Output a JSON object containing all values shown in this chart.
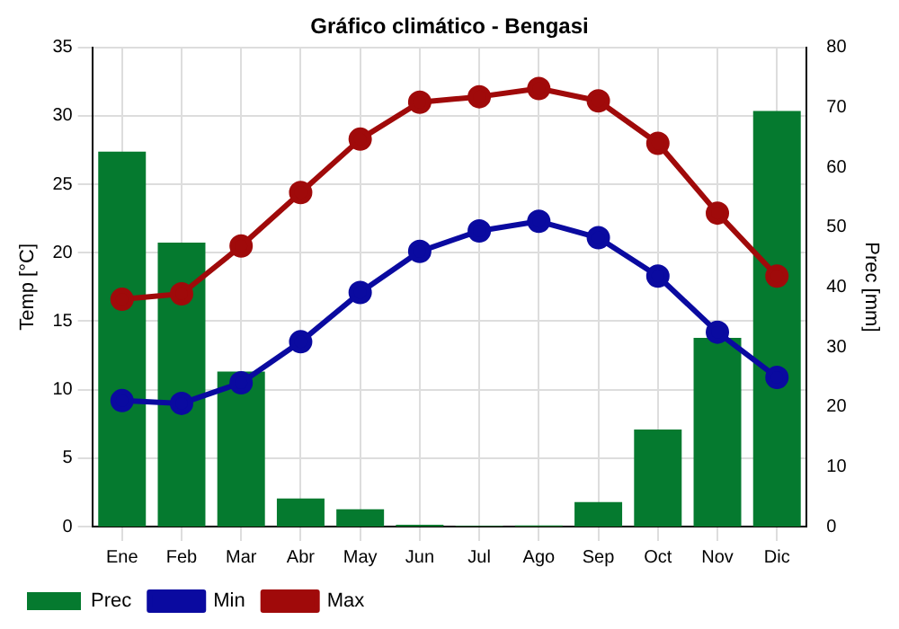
{
  "chart_data": {
    "type": "bar",
    "title": "Gráfico climático - Bengasi",
    "categories": [
      "Ene",
      "Feb",
      "Mar",
      "Abr",
      "May",
      "Jun",
      "Jul",
      "Ago",
      "Sep",
      "Oct",
      "Nov",
      "Dic"
    ],
    "series": [
      {
        "name": "Prec",
        "axis": "y2",
        "color": "#057a2f",
        "values": [
          62.6,
          47.4,
          25.9,
          4.7,
          2.9,
          0.3,
          0.1,
          0.2,
          4.1,
          16.2,
          31.5,
          69.4
        ]
      },
      {
        "name": "Min",
        "type": "line",
        "color": "#0a0aa0",
        "values": [
          9.2,
          9.0,
          10.5,
          13.5,
          17.1,
          20.1,
          21.6,
          22.3,
          21.1,
          18.3,
          14.2,
          10.9
        ]
      },
      {
        "name": "Max",
        "type": "line",
        "color": "#a00a0a",
        "values": [
          16.6,
          17.0,
          20.5,
          24.4,
          28.3,
          31.0,
          31.4,
          32.0,
          31.1,
          28.0,
          22.9,
          18.3
        ]
      }
    ],
    "ylabel": "Temp [°C]",
    "y2label": "Prec [mm]",
    "ylim": [
      0,
      35
    ],
    "yticks": [
      0,
      5,
      10,
      15,
      20,
      25,
      30,
      35
    ],
    "y2lim": [
      0,
      80
    ],
    "y2ticks": [
      0,
      10,
      20,
      30,
      40,
      50,
      60,
      70,
      80
    ],
    "grid": true,
    "legend": "bottom left",
    "marker": "circle",
    "line_style": "solid"
  }
}
